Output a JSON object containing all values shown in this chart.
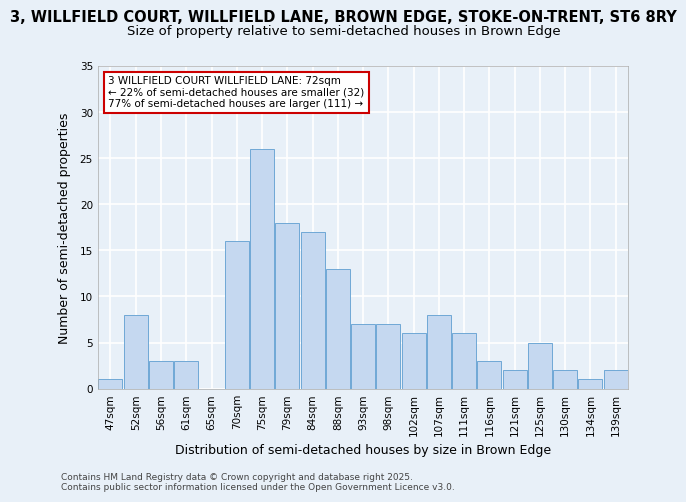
{
  "title1": "3, WILLFIELD COURT, WILLFIELD LANE, BROWN EDGE, STOKE-ON-TRENT, ST6 8RY",
  "title2": "Size of property relative to semi-detached houses in Brown Edge",
  "xlabel": "Distribution of semi-detached houses by size in Brown Edge",
  "ylabel": "Number of semi-detached properties",
  "footnote": "Contains HM Land Registry data © Crown copyright and database right 2025.\nContains public sector information licensed under the Open Government Licence v3.0.",
  "bins": [
    "47sqm",
    "52sqm",
    "56sqm",
    "61sqm",
    "65sqm",
    "70sqm",
    "75sqm",
    "79sqm",
    "84sqm",
    "88sqm",
    "93sqm",
    "98sqm",
    "102sqm",
    "107sqm",
    "111sqm",
    "116sqm",
    "121sqm",
    "125sqm",
    "130sqm",
    "134sqm",
    "139sqm"
  ],
  "values": [
    1,
    8,
    3,
    3,
    0,
    16,
    26,
    18,
    17,
    13,
    7,
    7,
    6,
    8,
    6,
    3,
    2,
    5,
    2,
    1,
    2
  ],
  "bar_color": "#c5d8f0",
  "bar_edge_color": "#6fa8d6",
  "annotation_text": "3 WILLFIELD COURT WILLFIELD LANE: 72sqm\n← 22% of semi-detached houses are smaller (32)\n77% of semi-detached houses are larger (111) →",
  "annotation_box_color": "#ffffff",
  "annotation_box_edge_color": "#cc0000",
  "ylim": [
    0,
    35
  ],
  "yticks": [
    0,
    5,
    10,
    15,
    20,
    25,
    30,
    35
  ],
  "bg_color": "#e8f0f8",
  "plot_bg_color": "#e8f0f8",
  "grid_color": "#ffffff",
  "title_fontsize": 10.5,
  "subtitle_fontsize": 9.5,
  "axis_fontsize": 9,
  "tick_fontsize": 7.5,
  "annotation_fontsize": 7.5,
  "footnote_fontsize": 6.5
}
